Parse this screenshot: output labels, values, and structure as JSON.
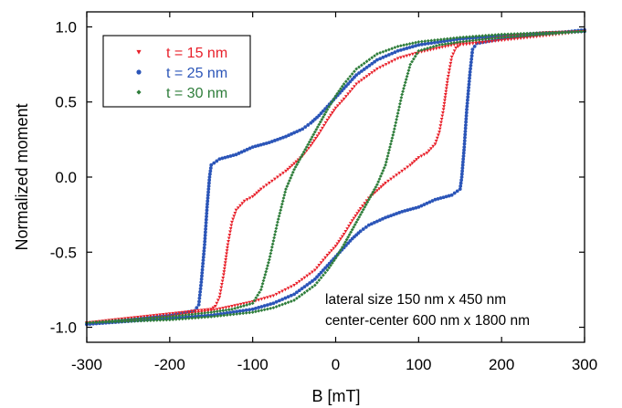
{
  "chart_data": {
    "type": "scatter",
    "xlabel": "B [mT]",
    "ylabel": "Normalized moment",
    "xlim": [
      -300,
      300
    ],
    "ylim": [
      -1.1,
      1.1
    ],
    "x_ticks": [
      "-300",
      "-200",
      "-100",
      "0",
      "100",
      "200",
      "300"
    ],
    "y_ticks": [
      "1.0",
      "0.5",
      "0.0",
      "-0.5",
      "-1.0"
    ],
    "grid": false,
    "legend_position": "top-left",
    "annotations": [
      "lateral size 150 nm x 450 nm",
      "center-center 600 nm x 1800 nm"
    ],
    "series": [
      {
        "name": "t = 15 nm",
        "color": "#e8202a",
        "marker": "triangle-down",
        "descending": [
          [
            300,
            0.97
          ],
          [
            250,
            0.96
          ],
          [
            200,
            0.93
          ],
          [
            150,
            0.89
          ],
          [
            100,
            0.83
          ],
          [
            75,
            0.79
          ],
          [
            50,
            0.72
          ],
          [
            25,
            0.62
          ],
          [
            10,
            0.52
          ],
          [
            0,
            0.46
          ],
          [
            -10,
            0.38
          ],
          [
            -20,
            0.29
          ],
          [
            -30,
            0.21
          ],
          [
            -40,
            0.14
          ],
          [
            -50,
            0.09
          ],
          [
            -60,
            0.04
          ],
          [
            -70,
            0.0
          ],
          [
            -80,
            -0.04
          ],
          [
            -90,
            -0.08
          ],
          [
            -100,
            -0.13
          ],
          [
            -110,
            -0.16
          ],
          [
            -120,
            -0.22
          ],
          [
            -125,
            -0.3
          ],
          [
            -130,
            -0.45
          ],
          [
            -135,
            -0.65
          ],
          [
            -140,
            -0.8
          ],
          [
            -145,
            -0.86
          ],
          [
            -150,
            -0.88
          ],
          [
            -200,
            -0.91
          ],
          [
            -250,
            -0.94
          ],
          [
            -300,
            -0.97
          ]
        ],
        "ascending": [
          [
            -300,
            -0.97
          ],
          [
            -250,
            -0.96
          ],
          [
            -200,
            -0.93
          ],
          [
            -150,
            -0.89
          ],
          [
            -100,
            -0.83
          ],
          [
            -75,
            -0.79
          ],
          [
            -50,
            -0.72
          ],
          [
            -25,
            -0.62
          ],
          [
            -10,
            -0.52
          ],
          [
            0,
            -0.46
          ],
          [
            10,
            -0.38
          ],
          [
            20,
            -0.29
          ],
          [
            30,
            -0.21
          ],
          [
            40,
            -0.14
          ],
          [
            50,
            -0.09
          ],
          [
            60,
            -0.04
          ],
          [
            70,
            0.0
          ],
          [
            80,
            0.04
          ],
          [
            90,
            0.08
          ],
          [
            100,
            0.13
          ],
          [
            110,
            0.16
          ],
          [
            120,
            0.22
          ],
          [
            125,
            0.3
          ],
          [
            130,
            0.45
          ],
          [
            135,
            0.65
          ],
          [
            140,
            0.8
          ],
          [
            145,
            0.86
          ],
          [
            150,
            0.88
          ],
          [
            200,
            0.91
          ],
          [
            250,
            0.94
          ],
          [
            300,
            0.97
          ]
        ]
      },
      {
        "name": "t = 25 nm",
        "color": "#2b55b8",
        "marker": "circle",
        "descending": [
          [
            300,
            0.97
          ],
          [
            250,
            0.96
          ],
          [
            200,
            0.94
          ],
          [
            150,
            0.92
          ],
          [
            100,
            0.88
          ],
          [
            75,
            0.84
          ],
          [
            50,
            0.78
          ],
          [
            25,
            0.68
          ],
          [
            10,
            0.59
          ],
          [
            0,
            0.53
          ],
          [
            -10,
            0.47
          ],
          [
            -20,
            0.41
          ],
          [
            -30,
            0.36
          ],
          [
            -40,
            0.32
          ],
          [
            -60,
            0.27
          ],
          [
            -80,
            0.23
          ],
          [
            -100,
            0.2
          ],
          [
            -120,
            0.15
          ],
          [
            -140,
            0.12
          ],
          [
            -150,
            0.08
          ],
          [
            -152,
            0.0
          ],
          [
            -155,
            -0.2
          ],
          [
            -158,
            -0.45
          ],
          [
            -162,
            -0.7
          ],
          [
            -165,
            -0.85
          ],
          [
            -170,
            -0.89
          ],
          [
            -200,
            -0.92
          ],
          [
            -250,
            -0.95
          ],
          [
            -300,
            -0.98
          ]
        ],
        "ascending": [
          [
            -300,
            -0.98
          ],
          [
            -250,
            -0.96
          ],
          [
            -200,
            -0.94
          ],
          [
            -150,
            -0.92
          ],
          [
            -100,
            -0.88
          ],
          [
            -75,
            -0.84
          ],
          [
            -50,
            -0.78
          ],
          [
            -25,
            -0.68
          ],
          [
            -10,
            -0.59
          ],
          [
            0,
            -0.53
          ],
          [
            10,
            -0.47
          ],
          [
            20,
            -0.41
          ],
          [
            30,
            -0.36
          ],
          [
            40,
            -0.32
          ],
          [
            60,
            -0.27
          ],
          [
            80,
            -0.23
          ],
          [
            100,
            -0.2
          ],
          [
            120,
            -0.15
          ],
          [
            140,
            -0.12
          ],
          [
            150,
            -0.08
          ],
          [
            152,
            0.0
          ],
          [
            155,
            0.2
          ],
          [
            158,
            0.45
          ],
          [
            162,
            0.7
          ],
          [
            165,
            0.85
          ],
          [
            170,
            0.89
          ],
          [
            200,
            0.92
          ],
          [
            250,
            0.95
          ],
          [
            300,
            0.98
          ]
        ]
      },
      {
        "name": "t = 30 nm",
        "color": "#2e7d3a",
        "marker": "diamond",
        "descending": [
          [
            300,
            0.97
          ],
          [
            250,
            0.96
          ],
          [
            200,
            0.95
          ],
          [
            150,
            0.93
          ],
          [
            100,
            0.9
          ],
          [
            75,
            0.87
          ],
          [
            50,
            0.82
          ],
          [
            25,
            0.72
          ],
          [
            10,
            0.62
          ],
          [
            0,
            0.54
          ],
          [
            -10,
            0.45
          ],
          [
            -20,
            0.35
          ],
          [
            -30,
            0.25
          ],
          [
            -40,
            0.15
          ],
          [
            -50,
            0.05
          ],
          [
            -60,
            -0.08
          ],
          [
            -70,
            -0.3
          ],
          [
            -80,
            -0.55
          ],
          [
            -90,
            -0.75
          ],
          [
            -100,
            -0.84
          ],
          [
            -125,
            -0.88
          ],
          [
            -150,
            -0.9
          ],
          [
            -200,
            -0.93
          ],
          [
            -250,
            -0.95
          ],
          [
            -300,
            -0.97
          ]
        ],
        "ascending": [
          [
            -300,
            -0.97
          ],
          [
            -250,
            -0.96
          ],
          [
            -200,
            -0.95
          ],
          [
            -150,
            -0.93
          ],
          [
            -100,
            -0.9
          ],
          [
            -75,
            -0.87
          ],
          [
            -50,
            -0.82
          ],
          [
            -25,
            -0.72
          ],
          [
            -10,
            -0.62
          ],
          [
            0,
            -0.54
          ],
          [
            10,
            -0.45
          ],
          [
            20,
            -0.35
          ],
          [
            30,
            -0.25
          ],
          [
            40,
            -0.15
          ],
          [
            50,
            -0.05
          ],
          [
            60,
            0.08
          ],
          [
            70,
            0.3
          ],
          [
            80,
            0.55
          ],
          [
            90,
            0.75
          ],
          [
            100,
            0.84
          ],
          [
            125,
            0.88
          ],
          [
            150,
            0.9
          ],
          [
            200,
            0.93
          ],
          [
            250,
            0.95
          ],
          [
            300,
            0.97
          ]
        ]
      }
    ]
  }
}
